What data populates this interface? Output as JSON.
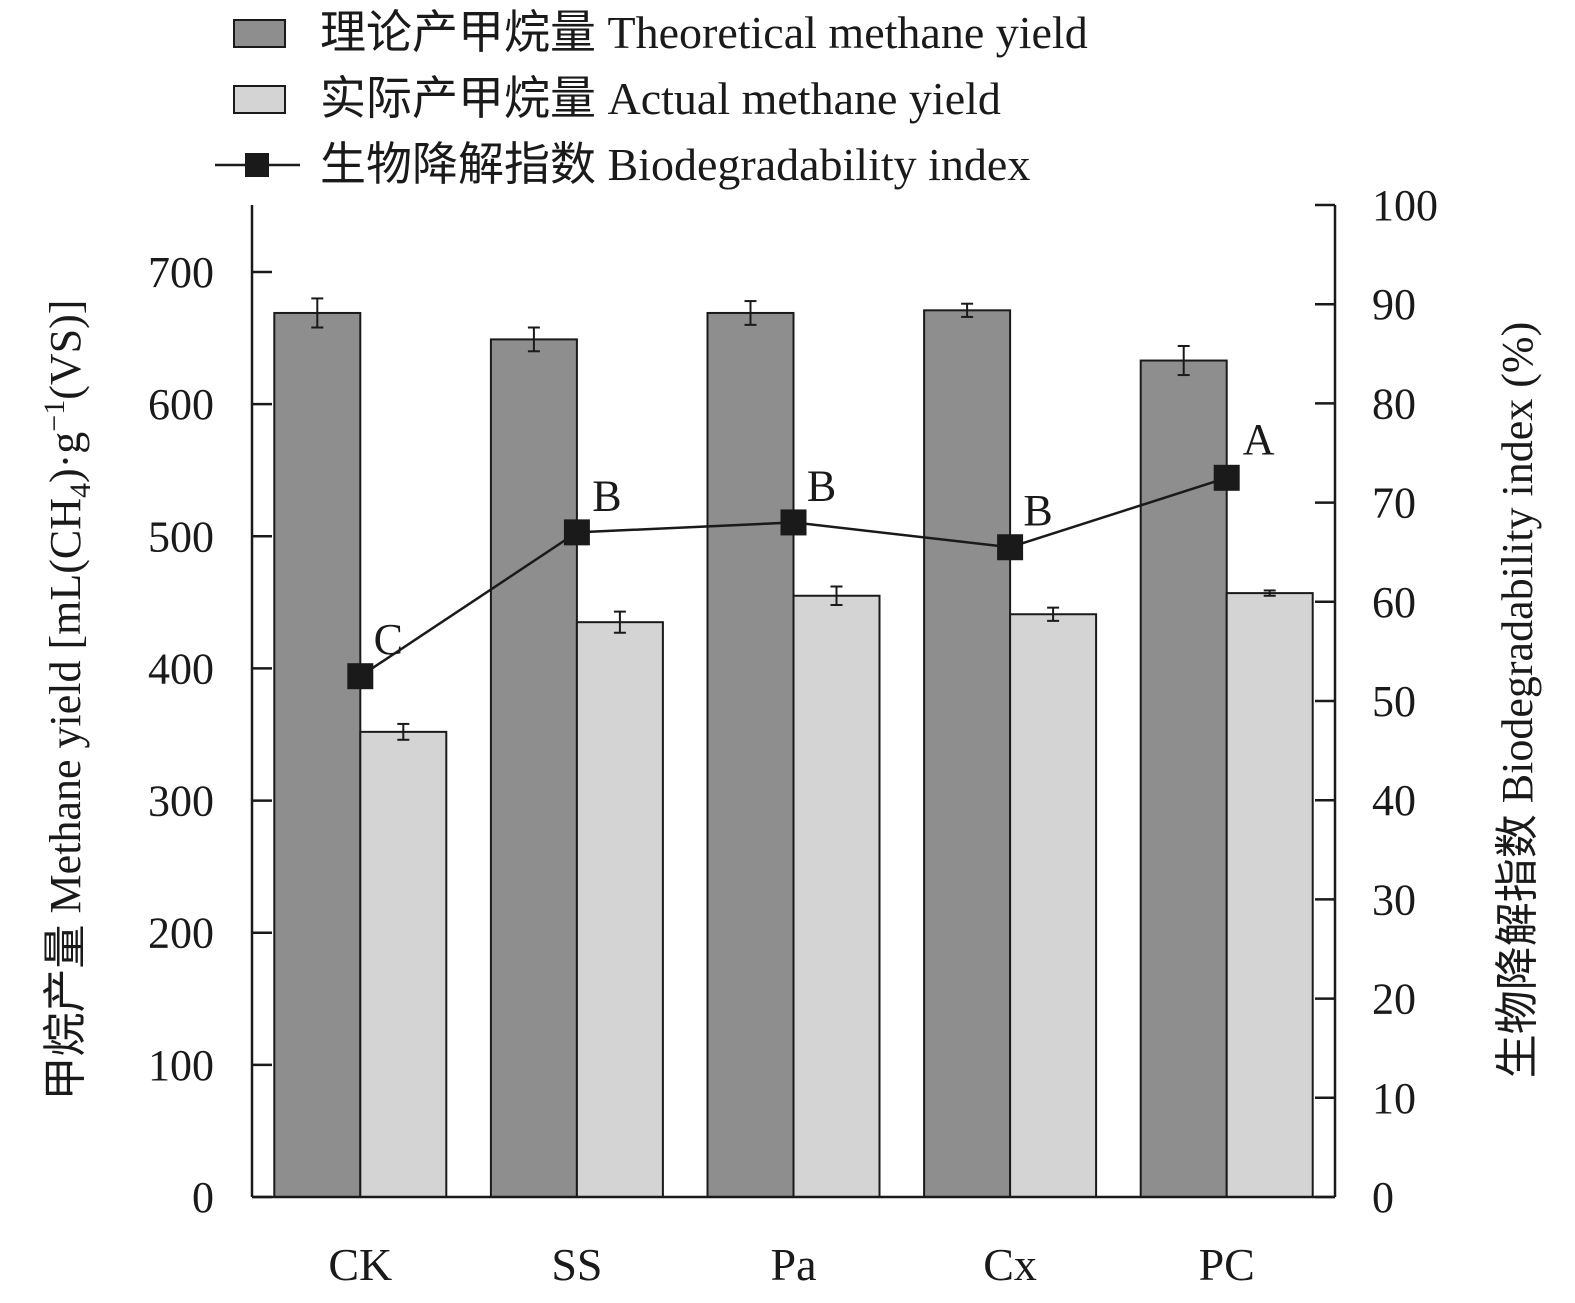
{
  "chart_data": {
    "type": "bar",
    "categories": [
      "CK",
      "SS",
      "Pa",
      "Cx",
      "PC"
    ],
    "series": [
      {
        "name": "理论产甲烷量 Theoretical methane yield",
        "kind": "bar",
        "axis": "left",
        "color": "#8f8e8f",
        "values": [
          669,
          649,
          669,
          671,
          633
        ],
        "errors": [
          11,
          9,
          9,
          5,
          11
        ]
      },
      {
        "name": "实际产甲烷量 Actual methane yield",
        "kind": "bar",
        "axis": "left",
        "color": "#d4d4d4",
        "values": [
          352,
          435,
          455,
          441,
          457
        ],
        "errors": [
          6,
          8,
          7,
          5,
          2
        ]
      },
      {
        "name": "生物降解指数 Biodegradability index",
        "kind": "line",
        "axis": "right",
        "color": "#1a1a1a",
        "values": [
          52.5,
          67,
          68,
          65.5,
          72.5
        ],
        "labels": [
          "C",
          "B",
          "B",
          "B",
          "A"
        ]
      }
    ],
    "y_left": {
      "label": "甲烷产量 Methane yield [mL(CH4)·g−1(VS)]",
      "label_parts": [
        "甲烷产量 Methane yield [mL(CH",
        "4",
        ")·g",
        "−1",
        "(VS)]"
      ],
      "ylim": [
        0,
        700
      ],
      "ticks": [
        0,
        100,
        200,
        300,
        400,
        500,
        600,
        700
      ]
    },
    "y_right": {
      "label": "生物降解指数 Biodegradability index (%)",
      "ylim": [
        0,
        100
      ],
      "ticks": [
        0,
        10,
        20,
        30,
        40,
        50,
        60,
        70,
        80,
        90,
        100
      ]
    },
    "legend": {
      "position": "top"
    }
  }
}
